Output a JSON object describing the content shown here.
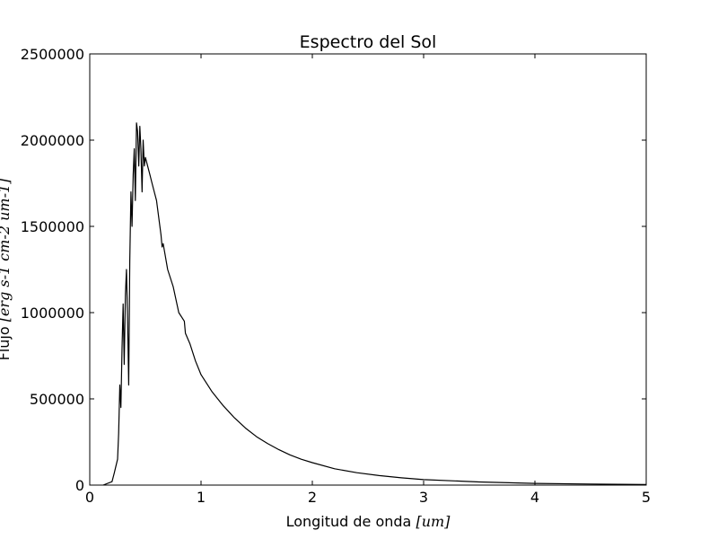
{
  "chart_data": {
    "type": "line",
    "title": "Espectro del Sol",
    "xlabel": "Longitud de onda [um]",
    "xlabel_text": "Longitud de onda ",
    "xlabel_unit": "[um]",
    "ylabel": "Flujo [erg s^-1 cm^-2 um^-1]",
    "ylabel_text": "Flujo ",
    "ylabel_unit": "[erg s-1 cm-2 um-1]",
    "xlim": [
      0,
      5
    ],
    "ylim": [
      0,
      2500000
    ],
    "xticks": [
      0,
      1,
      2,
      3,
      4,
      5
    ],
    "xtick_labels": [
      "0",
      "1",
      "2",
      "3",
      "4",
      "5"
    ],
    "yticks": [
      0,
      500000,
      1000000,
      1500000,
      2000000,
      2500000
    ],
    "ytick_labels": [
      "0",
      "500000",
      "1000000",
      "1500000",
      "2000000",
      "2500000"
    ],
    "grid": false,
    "line_color": "#000000",
    "series": [
      {
        "x": [
          0.12,
          0.2,
          0.22,
          0.25,
          0.26,
          0.27,
          0.28,
          0.29,
          0.3,
          0.31,
          0.32,
          0.33,
          0.34,
          0.35,
          0.36,
          0.37,
          0.38,
          0.39,
          0.4,
          0.41,
          0.42,
          0.43,
          0.44,
          0.45,
          0.46,
          0.47,
          0.48,
          0.49,
          0.5,
          0.52,
          0.54,
          0.56,
          0.58,
          0.6,
          0.62,
          0.64,
          0.65,
          0.66,
          0.7,
          0.75,
          0.8,
          0.85,
          0.86,
          0.9,
          0.95,
          1.0,
          1.1,
          1.2,
          1.3,
          1.4,
          1.5,
          1.6,
          1.7,
          1.8,
          1.9,
          2.0,
          2.2,
          2.4,
          2.6,
          2.8,
          3.0,
          3.5,
          4.0,
          4.5,
          5.0
        ],
        "y": [
          0,
          20000,
          70000,
          150000,
          300000,
          580000,
          450000,
          800000,
          1050000,
          700000,
          1100000,
          1250000,
          950000,
          580000,
          1300000,
          1700000,
          1500000,
          1800000,
          1950000,
          1650000,
          2100000,
          2050000,
          1850000,
          2080000,
          1950000,
          1700000,
          2000000,
          1850000,
          1900000,
          1850000,
          1800000,
          1750000,
          1700000,
          1650000,
          1550000,
          1450000,
          1380000,
          1400000,
          1250000,
          1150000,
          1000000,
          950000,
          880000,
          820000,
          720000,
          640000,
          540000,
          460000,
          390000,
          330000,
          280000,
          240000,
          205000,
          175000,
          150000,
          130000,
          95000,
          72000,
          55000,
          42000,
          32000,
          18000,
          10000,
          6000,
          3000
        ]
      }
    ]
  }
}
